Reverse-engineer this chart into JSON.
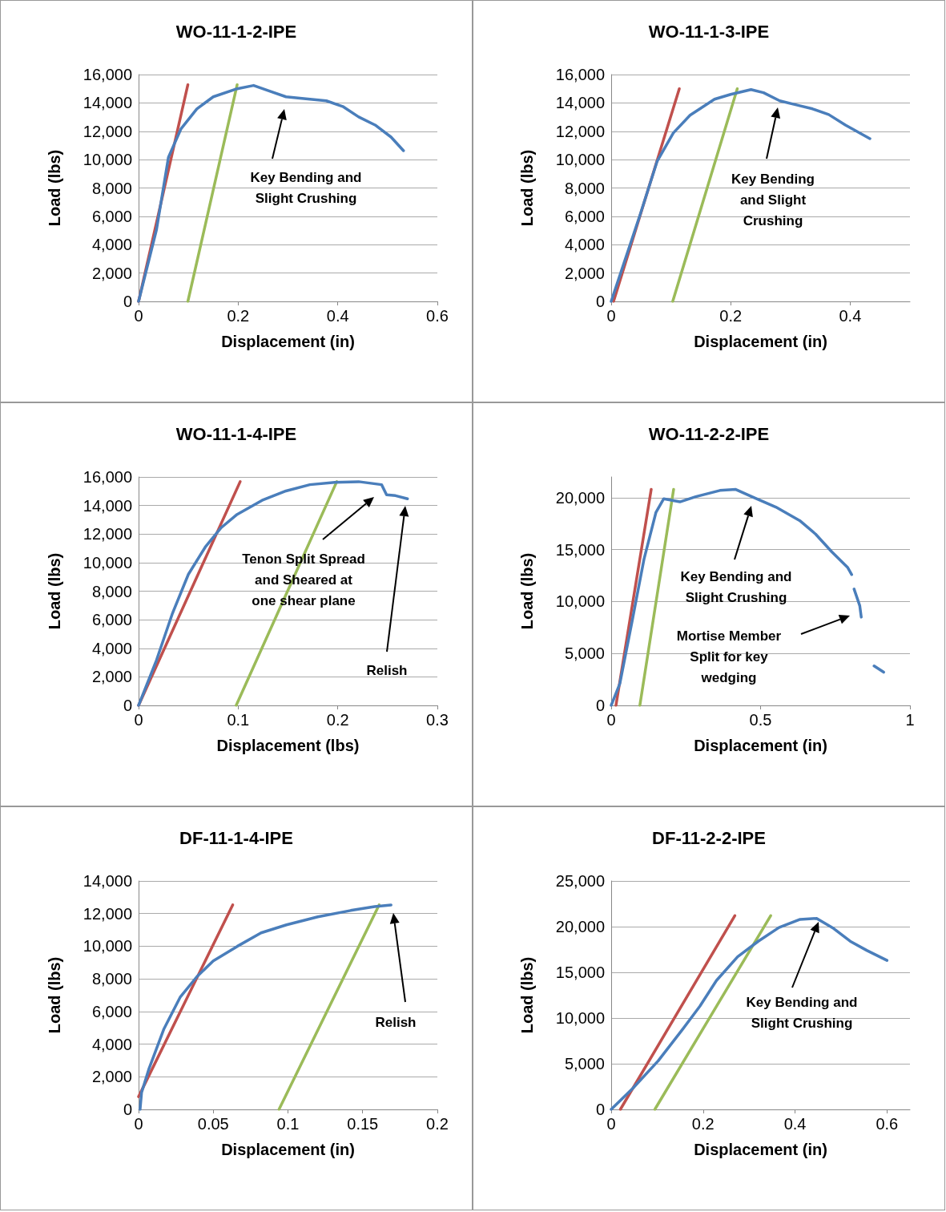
{
  "chart_data": [
    {
      "type": "line",
      "title": "WO-11-1-2-IPE",
      "xlabel": "Displacement (in)",
      "ylabel": "Load (lbs)",
      "xlim": [
        0,
        0.6
      ],
      "xticks": [
        0,
        0.2,
        0.4,
        0.6
      ],
      "ylim": [
        0,
        16000
      ],
      "yticks": [
        {
          "value": 0,
          "label": "0"
        },
        {
          "value": 2000,
          "label": "2,000"
        },
        {
          "value": 4000,
          "label": "4,000"
        },
        {
          "value": 6000,
          "label": "6,000"
        },
        {
          "value": 8000,
          "label": "8,000"
        },
        {
          "value": 10000,
          "label": "10,000"
        },
        {
          "value": 12000,
          "label": "12,000"
        },
        {
          "value": 14000,
          "label": "14,000"
        },
        {
          "value": 16000,
          "label": "16,000"
        }
      ],
      "grid": "y",
      "series": [
        {
          "color": "#c0504d",
          "x": [
            0,
            0.099
          ],
          "values": [
            0,
            15280
          ]
        },
        {
          "color": "#9bbb59",
          "x": [
            0.099,
            0.198
          ],
          "values": [
            0,
            15280
          ]
        },
        {
          "color": "#4a7ebb",
          "x": [
            0,
            0.036,
            0.06,
            0.085,
            0.117,
            0.15,
            0.198,
            0.231,
            0.263,
            0.296,
            0.328,
            0.377,
            0.41,
            0.442,
            0.475,
            0.507,
            0.532
          ],
          "values": [
            0,
            5060,
            10170,
            12160,
            13580,
            14430,
            15000,
            15230,
            14830,
            14430,
            14320,
            14150,
            13750,
            13010,
            12440,
            11590,
            10630
          ]
        }
      ],
      "annotations": [
        "Key Bending and\nSlight Crushing"
      ]
    },
    {
      "type": "line",
      "title": "WO-11-1-3-IPE",
      "xlabel": "Displacement (in)",
      "ylabel": "Load (lbs)",
      "xlim": [
        0,
        0.5
      ],
      "xticks": [
        0,
        0.2,
        0.4
      ],
      "ylim": [
        0,
        16000
      ],
      "yticks": [
        {
          "value": 0,
          "label": "0"
        },
        {
          "value": 2000,
          "label": "2,000"
        },
        {
          "value": 4000,
          "label": "4,000"
        },
        {
          "value": 6000,
          "label": "6,000"
        },
        {
          "value": 8000,
          "label": "8,000"
        },
        {
          "value": 10000,
          "label": "10,000"
        },
        {
          "value": 12000,
          "label": "12,000"
        },
        {
          "value": 14000,
          "label": "14,000"
        },
        {
          "value": 16000,
          "label": "16,000"
        }
      ],
      "grid": "y",
      "series": [
        {
          "color": "#c0504d",
          "x": [
            0.004,
            0.114
          ],
          "values": [
            0,
            15000
          ]
        },
        {
          "color": "#9bbb59",
          "x": [
            0.103,
            0.211
          ],
          "values": [
            0,
            15000
          ]
        },
        {
          "color": "#4a7ebb",
          "x": [
            0,
            0.022,
            0.049,
            0.077,
            0.104,
            0.132,
            0.173,
            0.2,
            0.234,
            0.255,
            0.282,
            0.31,
            0.337,
            0.364,
            0.392,
            0.433
          ],
          "values": [
            0,
            2780,
            6190,
            9890,
            11880,
            13130,
            14260,
            14600,
            14940,
            14720,
            14150,
            13860,
            13580,
            13180,
            12440,
            11480
          ]
        }
      ],
      "annotations": [
        "Key Bending\nand Slight\nCrushing"
      ]
    },
    {
      "type": "line",
      "title": "WO-11-1-4-IPE",
      "xlabel": "Displacement (lbs)",
      "ylabel": "Load (lbs)",
      "xlim": [
        0,
        0.3
      ],
      "xticks": [
        0,
        0.1,
        0.2,
        0.3
      ],
      "ylim": [
        0,
        16000
      ],
      "yticks": [
        {
          "value": 0,
          "label": "0"
        },
        {
          "value": 2000,
          "label": "2,000"
        },
        {
          "value": 4000,
          "label": "4,000"
        },
        {
          "value": 6000,
          "label": "6,000"
        },
        {
          "value": 8000,
          "label": "8,000"
        },
        {
          "value": 10000,
          "label": "10,000"
        },
        {
          "value": 12000,
          "label": "12,000"
        },
        {
          "value": 14000,
          "label": "14,000"
        },
        {
          "value": 16000,
          "label": "16,000"
        }
      ],
      "grid": "y",
      "series": [
        {
          "color": "#c0504d",
          "x": [
            0,
            0.102
          ],
          "values": [
            0,
            15670
          ]
        },
        {
          "color": "#9bbb59",
          "x": [
            0.098,
            0.199
          ],
          "values": [
            0,
            15670
          ]
        },
        {
          "color": "#4a7ebb",
          "x": [
            0,
            0.018,
            0.034,
            0.05,
            0.067,
            0.083,
            0.099,
            0.124,
            0.148,
            0.172,
            0.197,
            0.221,
            0.244,
            0.249,
            0.258,
            0.27
          ],
          "values": [
            0,
            3170,
            6440,
            9180,
            11090,
            12450,
            13380,
            14360,
            15020,
            15460,
            15620,
            15670,
            15460,
            14750,
            14690,
            14470
          ]
        }
      ],
      "annotations": [
        "Tenon Split Spread\nand Sheared at\none shear plane",
        "Relish"
      ]
    },
    {
      "type": "line",
      "title": "WO-11-2-2-IPE",
      "xlabel": "Displacement (in)",
      "ylabel": "Load (lbs)",
      "xlim": [
        0,
        1
      ],
      "xticks": [
        0,
        0.5,
        1
      ],
      "ylim": [
        0,
        22000
      ],
      "yticks": [
        {
          "value": 0,
          "label": "0"
        },
        {
          "value": 5000,
          "label": "5,000"
        },
        {
          "value": 10000,
          "label": "10,000"
        },
        {
          "value": 15000,
          "label": "15,000"
        },
        {
          "value": 20000,
          "label": "20,000"
        }
      ],
      "grid": "y",
      "series": [
        {
          "color": "#c0504d",
          "x": [
            0.016,
            0.134
          ],
          "values": [
            0,
            20800
          ]
        },
        {
          "color": "#9bbb59",
          "x": [
            0.096,
            0.209
          ],
          "values": [
            0,
            20800
          ]
        },
        {
          "color": "#4a7ebb",
          "x": [
            0,
            0.029,
            0.07,
            0.11,
            0.15,
            0.176,
            0.23,
            0.283,
            0.364,
            0.417,
            0.471,
            0.551,
            0.631,
            0.684,
            0.738,
            0.791,
            0.805,
            0.809,
            0.813,
            0.832,
            0.837,
            0.86,
            0.88,
            0.912
          ],
          "values": [
            0,
            2100,
            8100,
            14100,
            18600,
            19900,
            19600,
            20100,
            20700,
            20800,
            20100,
            19100,
            17800,
            16500,
            14800,
            13300,
            12600,
            null,
            11200,
            9600,
            8500,
            null,
            3800,
            3200
          ]
        }
      ],
      "annotations": [
        "Key Bending and\nSlight Crushing",
        "Mortise Member\nSplit for key\nwedging"
      ]
    },
    {
      "type": "line",
      "title": "DF-11-1-4-IPE",
      "xlabel": "Displacement (in)",
      "ylabel": "Load (lbs)",
      "xlim": [
        0,
        0.2
      ],
      "xticks": [
        0,
        0.05,
        0.1,
        0.15,
        0.2
      ],
      "ylim": [
        0,
        14000
      ],
      "yticks": [
        {
          "value": 0,
          "label": "0"
        },
        {
          "value": 2000,
          "label": "2,000"
        },
        {
          "value": 4000,
          "label": "4,000"
        },
        {
          "value": 6000,
          "label": "6,000"
        },
        {
          "value": 8000,
          "label": "8,000"
        },
        {
          "value": 10000,
          "label": "10,000"
        },
        {
          "value": 12000,
          "label": "12,000"
        },
        {
          "value": 14000,
          "label": "14,000"
        }
      ],
      "grid": "y",
      "series": [
        {
          "color": "#c0504d",
          "x": [
            0,
            0.063
          ],
          "values": [
            780,
            12530
          ]
        },
        {
          "color": "#9bbb59",
          "x": [
            0.094,
            0.161
          ],
          "values": [
            0,
            12530
          ]
        },
        {
          "color": "#4a7ebb",
          "x": [
            0.001,
            0.002,
            0.007,
            0.017,
            0.028,
            0.039,
            0.05,
            0.066,
            0.082,
            0.099,
            0.12,
            0.142,
            0.158,
            0.169
          ],
          "values": [
            0,
            1030,
            2500,
            4940,
            6900,
            8130,
            9100,
            9990,
            10820,
            11310,
            11800,
            12190,
            12430,
            12530
          ]
        }
      ],
      "annotations": [
        "Relish"
      ]
    },
    {
      "type": "line",
      "title": "DF-11-2-2-IPE",
      "xlabel": "Displacement (in)",
      "ylabel": "Load (lbs)",
      "xlim": [
        0,
        0.65
      ],
      "xticks": [
        0,
        0.2,
        0.4,
        0.6
      ],
      "ylim": [
        0,
        25000
      ],
      "yticks": [
        {
          "value": 0,
          "label": "0"
        },
        {
          "value": 5000,
          "label": "5,000"
        },
        {
          "value": 10000,
          "label": "10,000"
        },
        {
          "value": 15000,
          "label": "15,000"
        },
        {
          "value": 20000,
          "label": "20,000"
        },
        {
          "value": 25000,
          "label": "25,000"
        }
      ],
      "grid": "y",
      "series": [
        {
          "color": "#c0504d",
          "x": [
            0.02,
            0.269
          ],
          "values": [
            0,
            21200
          ]
        },
        {
          "color": "#9bbb59",
          "x": [
            0.095,
            0.347
          ],
          "values": [
            0,
            21200
          ]
        },
        {
          "color": "#4a7ebb",
          "x": [
            0,
            0.047,
            0.102,
            0.156,
            0.193,
            0.229,
            0.275,
            0.32,
            0.365,
            0.411,
            0.447,
            0.484,
            0.52,
            0.556,
            0.6
          ],
          "values": [
            0,
            2300,
            5300,
            8800,
            11300,
            14100,
            16700,
            18400,
            19900,
            20800,
            20900,
            19800,
            18400,
            17400,
            16300
          ]
        }
      ],
      "annotations": [
        "Key Bending and\nSlight Crushing"
      ]
    }
  ]
}
